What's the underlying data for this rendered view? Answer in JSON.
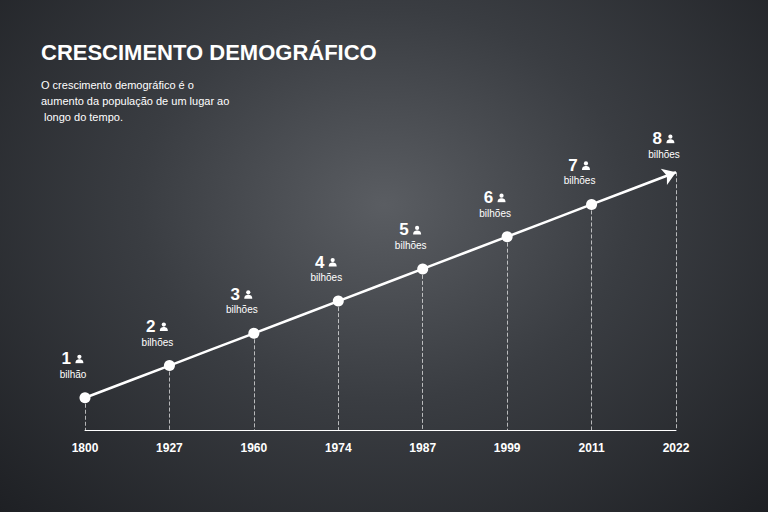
{
  "chart_data": {
    "type": "line",
    "title": "CRESCIMENTO DEMOGRÁFICO",
    "subtitle": "O crescimento demográfico é o aumento da população de um lugar ao longo do tempo.",
    "categories": [
      "1800",
      "1927",
      "1960",
      "1974",
      "1987",
      "1999",
      "2011",
      "2022"
    ],
    "values": [
      1,
      2,
      3,
      4,
      5,
      6,
      7,
      8
    ],
    "value_labels": [
      "1 bilhão",
      "2 bilhões",
      "3 bilhões",
      "4 bilhões",
      "5 bilhões",
      "6 bilhões",
      "7 bilhões",
      "8 bilhões"
    ],
    "ylim": [
      0,
      9
    ],
    "color": "#ffffff",
    "data_labels": true,
    "tick_labels": "x",
    "grid": false,
    "marker": "circle"
  }
}
